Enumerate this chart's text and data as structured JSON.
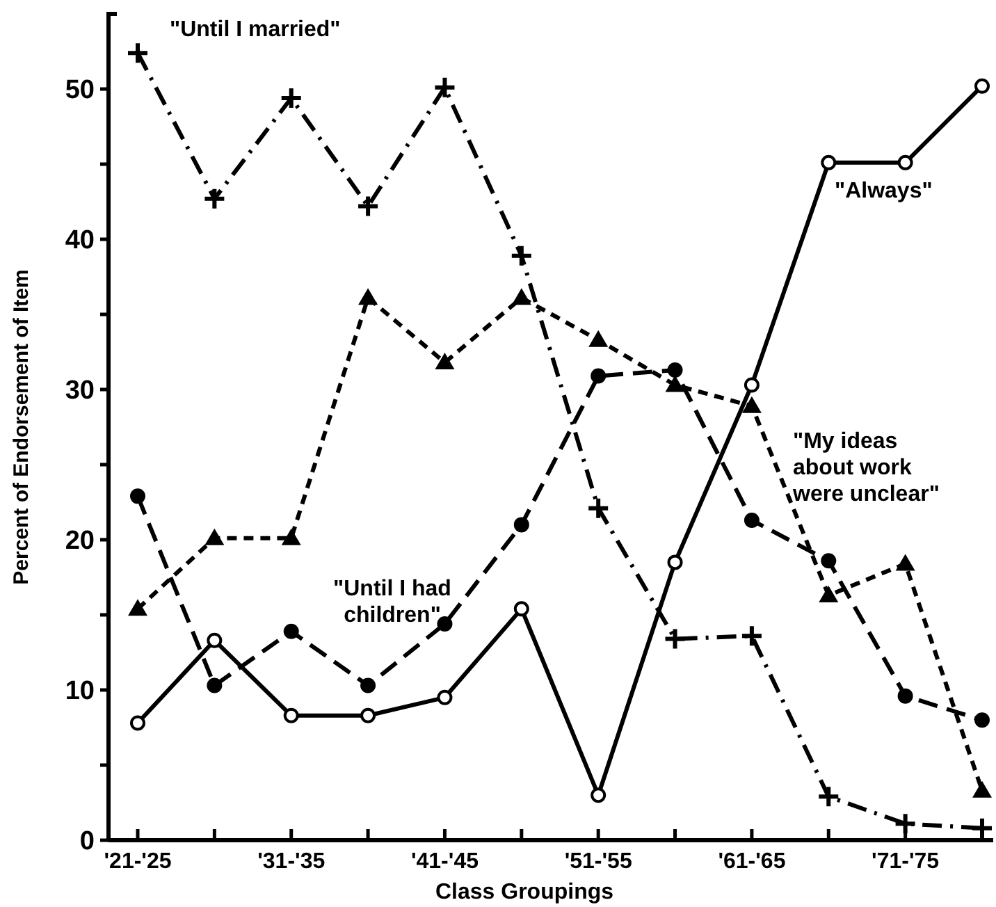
{
  "chart_data": {
    "type": "line",
    "xlabel": "Class Groupings",
    "ylabel": "Percent of Endorsement of Item",
    "categories": [
      "'21-'25",
      null,
      "'31-'35",
      null,
      "'41-'45",
      null,
      "'51-'55",
      null,
      "'61-'65",
      null,
      "'71-'75",
      null
    ],
    "ylim": [
      0,
      55
    ],
    "yticks": [
      0,
      {
        "value": 5,
        "label": null
      },
      10,
      {
        "value": 15,
        "label": null
      },
      20,
      {
        "value": 25,
        "label": null
      },
      30,
      {
        "value": 35,
        "label": null
      },
      40,
      {
        "value": 45,
        "label": null
      },
      50
    ],
    "grid": false,
    "series": [
      {
        "name": "\"Until I married\"",
        "color": "#000000",
        "marker": "cross",
        "line_style": "dashdot",
        "values": [
          52.4,
          42.7,
          49.4,
          42.2,
          50.1,
          38.9,
          22.1,
          13.4,
          13.6,
          2.9,
          1.1,
          0.8
        ]
      },
      {
        "name": "\"Always\"",
        "color": "#000000",
        "marker": "circle-open",
        "line_style": "solid",
        "values": [
          7.8,
          13.3,
          8.3,
          8.3,
          9.5,
          15.4,
          3.0,
          18.5,
          30.3,
          45.1,
          45.1,
          50.2
        ]
      },
      {
        "name": "\"Until I had children\"",
        "color": "#000000",
        "marker": "circle",
        "line_style": "dashed",
        "values": [
          22.9,
          10.3,
          13.9,
          10.3,
          14.4,
          21.0,
          30.9,
          31.3,
          21.3,
          18.6,
          9.6,
          8.0
        ]
      },
      {
        "name": "\"My ideas about work were unclear\"",
        "color": "#000000",
        "marker": "triangle",
        "line_style": "dashed",
        "values": [
          15.4,
          20.1,
          20.1,
          36.1,
          31.8,
          36.1,
          33.3,
          30.3,
          28.9,
          16.3,
          18.4,
          3.3
        ]
      }
    ]
  }
}
